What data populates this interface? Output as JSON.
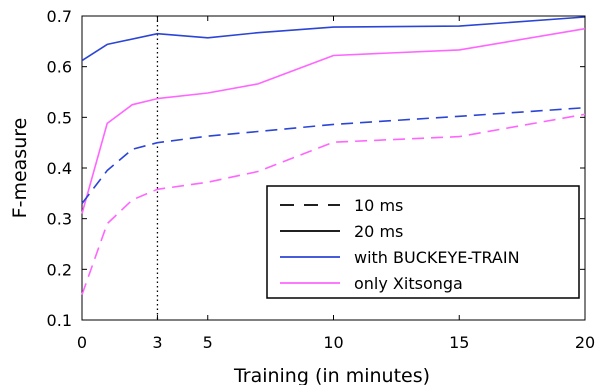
{
  "chart_data": {
    "type": "line",
    "title": "",
    "xlabel": "Training (in minutes)",
    "ylabel": "F-measure",
    "xlim": [
      0,
      20
    ],
    "ylim": [
      0.1,
      0.7
    ],
    "xticks": [
      0,
      3,
      5,
      10,
      15,
      20
    ],
    "xtick_labels": [
      "0",
      "3",
      "5",
      "10",
      "15",
      "20"
    ],
    "yticks": [
      0.1,
      0.2,
      0.3,
      0.4,
      0.5,
      0.6,
      0.7
    ],
    "ytick_labels": [
      "0.1",
      "0.2",
      "0.3",
      "0.4",
      "0.5",
      "0.6",
      "0.7"
    ],
    "grid": false,
    "legend_position": "bottom-right",
    "reference_line": {
      "x": 3,
      "style": "dotted",
      "color": "#000000"
    },
    "colors": {
      "buckeye": "#2b45d6",
      "xitsonga": "#ff66ff",
      "legend_key": "#000000"
    },
    "series": [
      {
        "group": "buckeye",
        "dash": "solid",
        "x": [
          0,
          1,
          3,
          5,
          7,
          10,
          15,
          20
        ],
        "values": [
          0.612,
          0.644,
          0.665,
          0.657,
          0.667,
          0.678,
          0.68,
          0.698
        ]
      },
      {
        "group": "xitsonga",
        "dash": "solid",
        "x": [
          0,
          1,
          2,
          3,
          5,
          7,
          10,
          15,
          20
        ],
        "values": [
          0.31,
          0.488,
          0.525,
          0.537,
          0.548,
          0.566,
          0.622,
          0.633,
          0.675
        ]
      },
      {
        "group": "buckeye",
        "dash": "dashed",
        "x": [
          0,
          1,
          2,
          3,
          5,
          7,
          10,
          15,
          20
        ],
        "values": [
          0.33,
          0.395,
          0.437,
          0.45,
          0.463,
          0.472,
          0.486,
          0.502,
          0.519
        ]
      },
      {
        "group": "xitsonga",
        "dash": "dashed",
        "x": [
          0,
          1,
          2,
          3,
          5,
          7,
          10,
          15,
          20
        ],
        "values": [
          0.15,
          0.29,
          0.337,
          0.358,
          0.372,
          0.393,
          0.451,
          0.462,
          0.506
        ]
      }
    ],
    "legend": [
      {
        "label": "10 ms",
        "style": "dashed",
        "color": "#000000"
      },
      {
        "label": "20 ms",
        "style": "solid",
        "color": "#000000"
      },
      {
        "label": "with BUCKEYE-TRAIN",
        "style": "solid",
        "color": "#2b45d6"
      },
      {
        "label": "only Xitsonga",
        "style": "solid",
        "color": "#ff66ff"
      }
    ]
  }
}
